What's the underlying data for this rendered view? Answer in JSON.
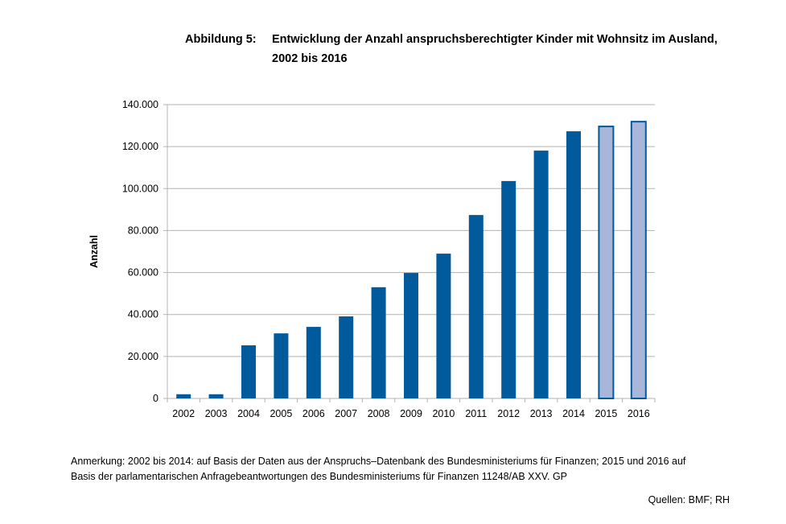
{
  "figure_label": "Abbildung 5:",
  "title_line1": "Entwicklung der Anzahl anspruchsberechtigter Kinder mit Wohnsitz im Ausland,",
  "title_line2": "2002 bis 2016",
  "note_line1": "Anmerkung: 2002 bis 2014: auf Basis der Daten aus der Anspruchs–Datenbank des Bundesministeriums für Finanzen; 2015 und 2016 auf",
  "note_line2": "Basis der parlamentarischen Anfragebeantwortungen des Bundesministeriums für Finanzen 11248/AB XXV. GP",
  "sources": "Quellen: BMF; RH",
  "chart_data": {
    "type": "bar",
    "title": "Entwicklung der Anzahl anspruchsberechtigter Kinder mit Wohnsitz im Ausland, 2002 bis 2016",
    "xlabel": "",
    "ylabel": "Anzahl",
    "categories": [
      "2002",
      "2003",
      "2004",
      "2005",
      "2006",
      "2007",
      "2008",
      "2009",
      "2010",
      "2011",
      "2012",
      "2013",
      "2014",
      "2015",
      "2016"
    ],
    "values": [
      2000,
      2000,
      25300,
      31000,
      34100,
      39100,
      53000,
      59800,
      69000,
      87400,
      103600,
      118100,
      127300,
      129600,
      131900
    ],
    "ylim": [
      0,
      140000
    ],
    "yticks": [
      0,
      20000,
      40000,
      60000,
      80000,
      100000,
      120000,
      140000
    ],
    "ytick_labels": [
      "0",
      "20.000",
      "40.000",
      "60.000",
      "80.000",
      "100.000",
      "120.000",
      "140.000"
    ],
    "grid": true,
    "colors": {
      "primary": "#005a9c",
      "highlight_fill": "#a7b6d9",
      "highlight_stroke": "#005a9c",
      "grid": "#b3b3b3"
    },
    "highlighted_categories": [
      "2015",
      "2016"
    ]
  }
}
